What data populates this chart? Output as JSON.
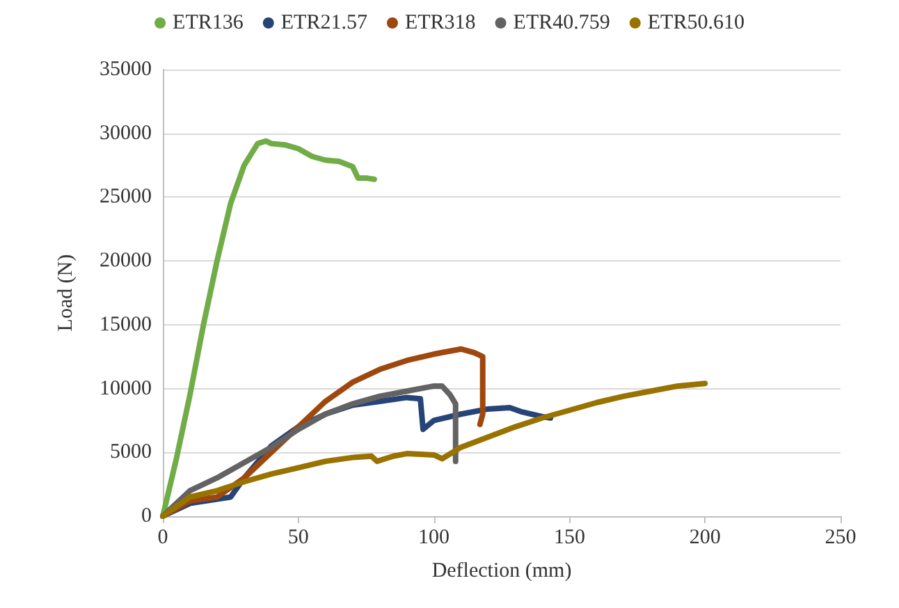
{
  "chart_data": {
    "type": "line",
    "xlabel": "Deflection (mm)",
    "ylabel": "Load (N)",
    "xlim": [
      0,
      250
    ],
    "xticks": [
      0,
      50,
      100,
      150,
      200,
      250
    ],
    "ylim": [
      0,
      35000
    ],
    "yticks": [
      0,
      5000,
      10000,
      15000,
      20000,
      25000,
      30000,
      35000
    ],
    "grid": "y",
    "legend": "top",
    "marker": "none",
    "line_style": "solid",
    "series": [
      {
        "name": "ETR136",
        "color": "#70ad47",
        "x": [
          0,
          5,
          10,
          15,
          20,
          25,
          30,
          35,
          38,
          40,
          45,
          50,
          55,
          60,
          65,
          70,
          72,
          75,
          78
        ],
        "values": [
          0,
          4500,
          9500,
          15000,
          20000,
          24500,
          27500,
          29200,
          29400,
          29200,
          29100,
          28800,
          28200,
          27900,
          27800,
          27400,
          26500,
          26500,
          26400
        ]
      },
      {
        "name": "ETR21.57",
        "color": "#264478",
        "x": [
          0,
          10,
          25,
          30,
          40,
          50,
          60,
          70,
          80,
          90,
          95,
          96,
          100,
          110,
          120,
          128,
          132,
          140,
          143
        ],
        "values": [
          0,
          1000,
          1500,
          3000,
          5500,
          7000,
          8000,
          8700,
          9000,
          9300,
          9200,
          6800,
          7500,
          8000,
          8400,
          8500,
          8200,
          7800,
          7700
        ]
      },
      {
        "name": "ETR318",
        "color": "#9e480e",
        "x": [
          0,
          10,
          20,
          30,
          40,
          50,
          60,
          70,
          80,
          90,
          100,
          110,
          115,
          118,
          118,
          117
        ],
        "values": [
          0,
          1200,
          1500,
          3000,
          5000,
          7000,
          9000,
          10500,
          11500,
          12200,
          12700,
          13100,
          12800,
          12500,
          8000,
          7200
        ]
      },
      {
        "name": "ETR40.759",
        "color": "#636363",
        "x": [
          0,
          10,
          20,
          30,
          40,
          50,
          60,
          70,
          80,
          90,
          100,
          103,
          106,
          108,
          108
        ],
        "values": [
          0,
          2000,
          3000,
          4200,
          5400,
          6800,
          8000,
          8800,
          9400,
          9800,
          10200,
          10200,
          9500,
          8800,
          4300
        ]
      },
      {
        "name": "ETR50.610",
        "color": "#997300",
        "x": [
          0,
          10,
          20,
          30,
          40,
          50,
          60,
          70,
          77,
          79,
          85,
          90,
          100,
          103,
          110,
          120,
          130,
          140,
          150,
          160,
          170,
          180,
          190,
          200
        ],
        "values": [
          0,
          1500,
          2000,
          2700,
          3300,
          3800,
          4300,
          4600,
          4700,
          4300,
          4700,
          4900,
          4800,
          4500,
          5400,
          6200,
          7000,
          7700,
          8300,
          8900,
          9400,
          9800,
          10200,
          10400
        ]
      }
    ]
  }
}
